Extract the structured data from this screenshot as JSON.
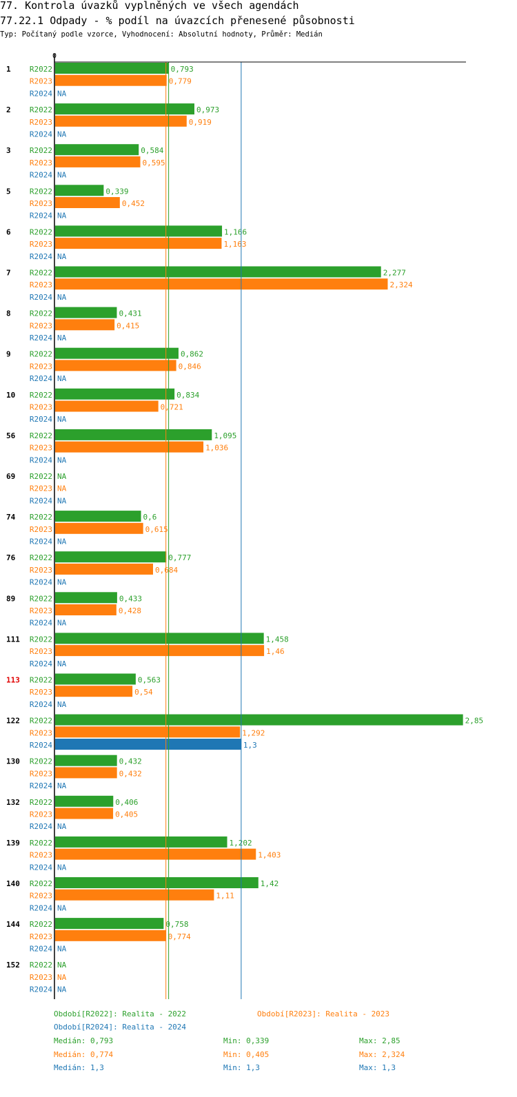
{
  "header": {
    "title": "77. Kontrola úvazků vyplněných ve všech agendách",
    "subtitle": "77.22.1 Odpady - % podíl na úvazcích přenesené působnosti",
    "meta": "Typ: Počítaný podle vzorce, Vyhodnocení: Absolutní hodnoty, Průměr: Medián"
  },
  "chart_data": {
    "type": "bar",
    "orientation": "horizontal",
    "axis_zero_label": "0",
    "xlim": [
      0,
      2.88
    ],
    "series_names": [
      "R2022",
      "R2023",
      "R2024"
    ],
    "colors": {
      "R2022": "#2ca02c",
      "R2023": "#ff7f0e",
      "R2024": "#1f77b4",
      "highlight": "#e00000"
    },
    "na_label": "NA",
    "highlight_category": "113",
    "categories": [
      {
        "id": "1",
        "values": [
          0.793,
          0.779,
          null
        ],
        "labels": [
          "0,793",
          "0,779",
          "NA"
        ]
      },
      {
        "id": "2",
        "values": [
          0.973,
          0.919,
          null
        ],
        "labels": [
          "0,973",
          "0,919",
          "NA"
        ]
      },
      {
        "id": "3",
        "values": [
          0.584,
          0.595,
          null
        ],
        "labels": [
          "0,584",
          "0,595",
          "NA"
        ]
      },
      {
        "id": "5",
        "values": [
          0.339,
          0.452,
          null
        ],
        "labels": [
          "0,339",
          "0,452",
          "NA"
        ]
      },
      {
        "id": "6",
        "values": [
          1.166,
          1.163,
          null
        ],
        "labels": [
          "1,166",
          "1,163",
          "NA"
        ]
      },
      {
        "id": "7",
        "values": [
          2.277,
          2.324,
          null
        ],
        "labels": [
          "2,277",
          "2,324",
          "NA"
        ]
      },
      {
        "id": "8",
        "values": [
          0.431,
          0.415,
          null
        ],
        "labels": [
          "0,431",
          "0,415",
          "NA"
        ]
      },
      {
        "id": "9",
        "values": [
          0.862,
          0.846,
          null
        ],
        "labels": [
          "0,862",
          "0,846",
          "NA"
        ]
      },
      {
        "id": "10",
        "values": [
          0.834,
          0.721,
          null
        ],
        "labels": [
          "0,834",
          "0,721",
          "NA"
        ]
      },
      {
        "id": "56",
        "values": [
          1.095,
          1.036,
          null
        ],
        "labels": [
          "1,095",
          "1,036",
          "NA"
        ]
      },
      {
        "id": "69",
        "values": [
          null,
          null,
          null
        ],
        "labels": [
          "NA",
          "NA",
          "NA"
        ]
      },
      {
        "id": "74",
        "values": [
          0.6,
          0.615,
          null
        ],
        "labels": [
          "0,6",
          "0,615",
          "NA"
        ]
      },
      {
        "id": "76",
        "values": [
          0.777,
          0.684,
          null
        ],
        "labels": [
          "0,777",
          "0,684",
          "NA"
        ]
      },
      {
        "id": "89",
        "values": [
          0.433,
          0.428,
          null
        ],
        "labels": [
          "0,433",
          "0,428",
          "NA"
        ]
      },
      {
        "id": "111",
        "values": [
          1.458,
          1.46,
          null
        ],
        "labels": [
          "1,458",
          "1,46",
          "NA"
        ]
      },
      {
        "id": "113",
        "values": [
          0.563,
          0.54,
          null
        ],
        "labels": [
          "0,563",
          "0,54",
          "NA"
        ]
      },
      {
        "id": "122",
        "values": [
          2.85,
          1.292,
          1.3
        ],
        "labels": [
          "2,85",
          "1,292",
          "1,3"
        ]
      },
      {
        "id": "130",
        "values": [
          0.432,
          0.432,
          null
        ],
        "labels": [
          "0,432",
          "0,432",
          "NA"
        ]
      },
      {
        "id": "132",
        "values": [
          0.406,
          0.405,
          null
        ],
        "labels": [
          "0,406",
          "0,405",
          "NA"
        ]
      },
      {
        "id": "139",
        "values": [
          1.202,
          1.403,
          null
        ],
        "labels": [
          "1,202",
          "1,403",
          "NA"
        ]
      },
      {
        "id": "140",
        "values": [
          1.42,
          1.11,
          null
        ],
        "labels": [
          "1,42",
          "1,11",
          "NA"
        ]
      },
      {
        "id": "144",
        "values": [
          0.758,
          0.774,
          null
        ],
        "labels": [
          "0,758",
          "0,774",
          "NA"
        ]
      },
      {
        "id": "152",
        "values": [
          null,
          null,
          null
        ],
        "labels": [
          "NA",
          "NA",
          "NA"
        ]
      }
    ],
    "median_lines": [
      0.793,
      0.774,
      1.3
    ]
  },
  "legend": {
    "r2022": "Období[R2022]: Realita - 2022",
    "r2023": "Období[R2023]: Realita - 2023",
    "r2024": "Období[R2024]: Realita - 2024"
  },
  "stats": {
    "r2022": {
      "median": "Medián: 0,793",
      "min": "Min: 0,339",
      "max": "Max: 2,85"
    },
    "r2023": {
      "median": "Medián: 0,774",
      "min": "Min: 0,405",
      "max": "Max: 2,324"
    },
    "r2024": {
      "median": "Medián: 1,3",
      "min": "Min: 1,3",
      "max": "Max: 1,3"
    }
  }
}
